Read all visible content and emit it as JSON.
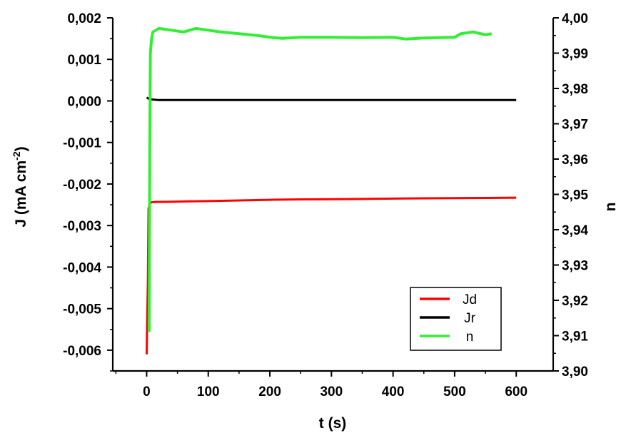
{
  "chart_data": {
    "type": "line",
    "xlabel": "t (s)",
    "ylabel_left_main": "J (mA cm",
    "ylabel_left_sup": "-2",
    "ylabel_left_close": ")",
    "ylabel_right": "n",
    "xlim": [
      -55,
      660
    ],
    "ylim_left": [
      -0.0065,
      0.002
    ],
    "ylim_right": [
      3.9,
      4.0
    ],
    "x_ticks": [
      0,
      100,
      200,
      300,
      400,
      500,
      600
    ],
    "x_tick_labels": [
      "0",
      "100",
      "200",
      "300",
      "400",
      "500",
      "600"
    ],
    "y_left_ticks": [
      0.002,
      0.001,
      0.0,
      -0.001,
      -0.002,
      -0.003,
      -0.004,
      -0.005,
      -0.006
    ],
    "y_left_tick_labels": [
      "0,002",
      "0,001",
      "0,000",
      "-0,001",
      "-0,002",
      "-0,003",
      "-0,004",
      "-0,005",
      "-0,006"
    ],
    "y_right_ticks": [
      4.0,
      3.99,
      3.98,
      3.97,
      3.96,
      3.95,
      3.94,
      3.93,
      3.92,
      3.91,
      3.9
    ],
    "y_right_tick_labels": [
      "4,00",
      "3,99",
      "3,98",
      "3,97",
      "3,96",
      "3,95",
      "3,94",
      "3,93",
      "3,92",
      "3,91",
      "3,90"
    ],
    "grid": false,
    "legend_position": "bottom-right",
    "series": [
      {
        "name": "Jd",
        "axis": "left",
        "color": "#ff0000",
        "x": [
          0,
          1,
          2,
          3,
          5,
          8,
          15,
          30,
          60,
          100,
          150,
          200,
          250,
          300,
          350,
          400,
          450,
          500,
          550,
          600
        ],
        "y": [
          -0.0061,
          -0.0052,
          -0.0043,
          -0.0026,
          -0.00247,
          -0.00244,
          -0.00243,
          -0.00243,
          -0.00242,
          -0.00241,
          -0.002395,
          -0.00238,
          -0.00237,
          -0.002365,
          -0.00236,
          -0.00235,
          -0.002345,
          -0.00234,
          -0.002335,
          -0.00233
        ]
      },
      {
        "name": "Jr",
        "axis": "left",
        "color": "#000000",
        "x": [
          0,
          5,
          20,
          100,
          200,
          300,
          400,
          500,
          600
        ],
        "y": [
          8e-05,
          4e-05,
          2e-05,
          2e-05,
          2e-05,
          2e-05,
          2e-05,
          2e-05,
          2e-05
        ]
      },
      {
        "name": "n",
        "axis": "right",
        "color": "#33ee33",
        "x": [
          4,
          5,
          6,
          8,
          10,
          15,
          20,
          40,
          60,
          80,
          100,
          120,
          150,
          180,
          200,
          220,
          250,
          300,
          350,
          400,
          420,
          450,
          500,
          510,
          530,
          550,
          560
        ],
        "y": [
          3.911,
          3.96,
          3.99,
          3.994,
          3.996,
          3.9965,
          3.997,
          3.9965,
          3.996,
          3.997,
          3.9965,
          3.996,
          3.9955,
          3.995,
          3.9945,
          3.9942,
          3.9945,
          3.9945,
          3.9944,
          3.9945,
          3.994,
          3.9943,
          3.9945,
          3.9955,
          3.996,
          3.9952,
          3.9955
        ]
      }
    ]
  }
}
